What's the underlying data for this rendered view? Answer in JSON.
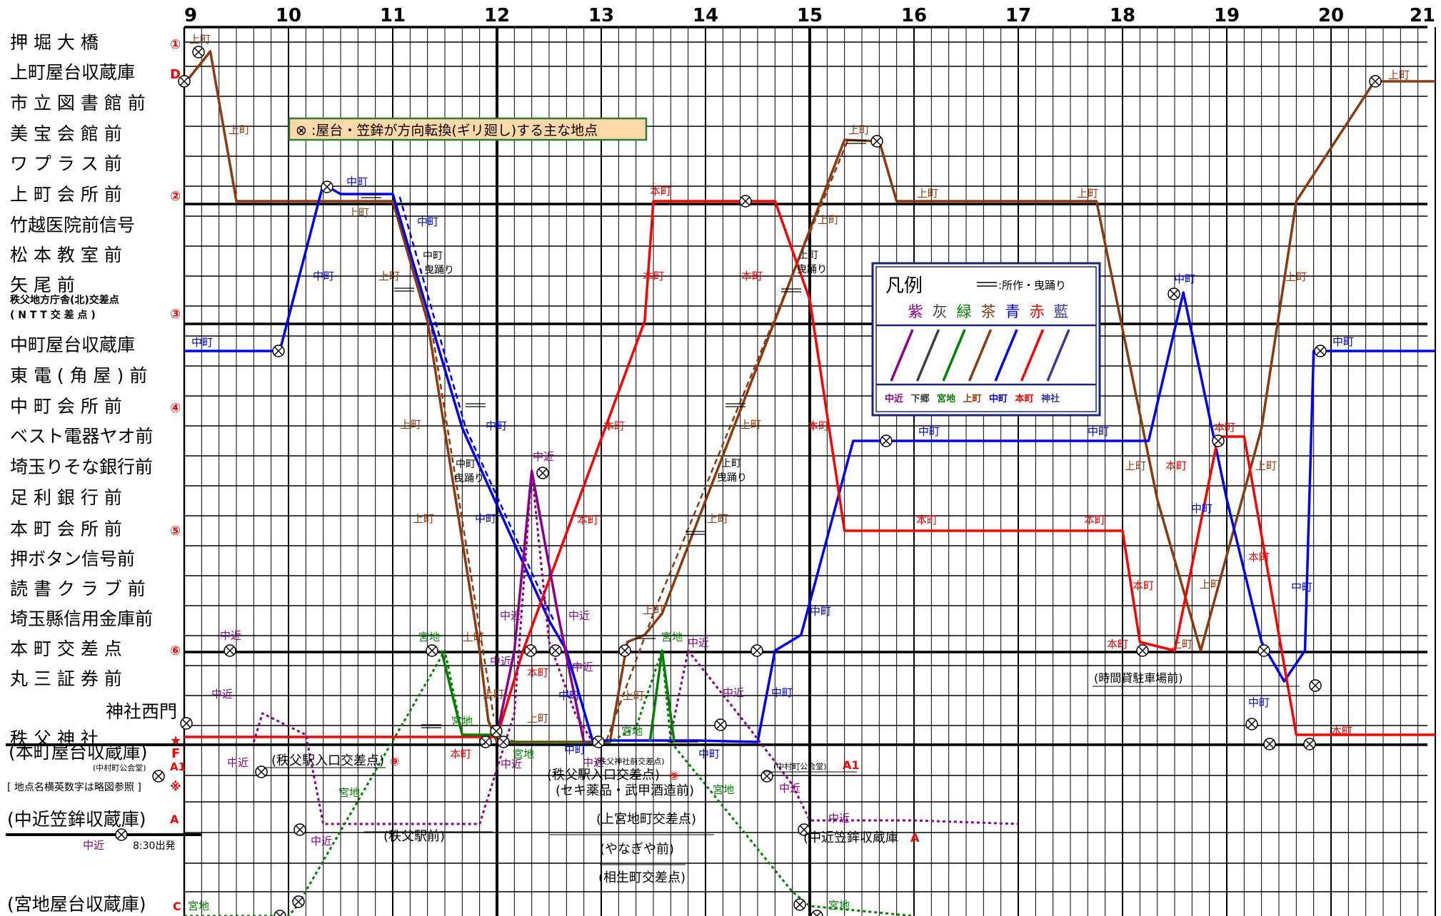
{
  "hours": [
    "9",
    "10",
    "11",
    "12",
    "13",
    "14",
    "15",
    "16",
    "17",
    "18",
    "19",
    "20",
    "21"
  ],
  "stations": [
    {
      "name": "押 堀 大 橋",
      "mark": "①",
      "size": 26
    },
    {
      "name": "上町屋台収蔵庫",
      "mark": "D",
      "size": 26
    },
    {
      "name": "市 立 図 書 館 前",
      "mark": "",
      "size": 26
    },
    {
      "name": "美 宝 会 館 前",
      "mark": "",
      "size": 26
    },
    {
      "name": "ワ プ ラ ス 前",
      "mark": "",
      "size": 26
    },
    {
      "name": "上 町 会 所 前",
      "mark": "②",
      "size": 26
    },
    {
      "name": "竹越医院前信号",
      "mark": "",
      "size": 26
    },
    {
      "name": "松 本 教 室 前",
      "mark": "",
      "size": 26
    },
    {
      "name": "矢 尾 前",
      "mark": "",
      "size": 26
    },
    {
      "name": "秩父地方庁舎(北)交差点",
      "name2": "( N T T 交 差 点 )",
      "mark": "③",
      "size": 14
    },
    {
      "name": "中町屋台収蔵庫",
      "mark": "",
      "size": 26
    },
    {
      "name": "東 電 ( 角 屋 ) 前",
      "mark": "",
      "size": 26
    },
    {
      "name": "中 町 会 所 前",
      "mark": "④",
      "size": 26
    },
    {
      "name": "ベスト電器ヤオ前",
      "mark": "",
      "size": 26
    },
    {
      "name": "埼玉りそな銀行前",
      "mark": "",
      "size": 26
    },
    {
      "name": "足 利 銀 行 前",
      "mark": "",
      "size": 26
    },
    {
      "name": "本 町 会 所 前",
      "mark": "⑤",
      "size": 26
    },
    {
      "name": "押ボタン信号前",
      "mark": "",
      "size": 26
    },
    {
      "name": "読 書 ク ラ ブ 前",
      "mark": "",
      "size": 26
    },
    {
      "name": "埼玉縣信用金庫前",
      "mark": "",
      "size": 26
    },
    {
      "name": "本 町 交 差 点",
      "mark": "⑥",
      "size": 26
    },
    {
      "name": "丸 三 証 券 前",
      "mark": "",
      "size": 26
    },
    {
      "name": "神社西門",
      "mark": "",
      "size": 26
    },
    {
      "name": "秩 父 神 社",
      "mark": "★",
      "size": 26
    },
    {
      "name": "(本町屋台収蔵庫)",
      "mark": "F",
      "size": 26
    }
  ],
  "lower_labels": [
    {
      "text": "(中村町公会堂)",
      "mark": "A1",
      "size": 13
    },
    {
      "text": "[ 地点名横英数字は略図参照 ]",
      "mark": "※",
      "size": 14
    },
    {
      "text": "(中近笠鉾収蔵庫)",
      "mark": "A",
      "size": 26
    },
    {
      "text": "(宮地屋台収蔵庫)",
      "mark": "C",
      "size": 26
    }
  ],
  "notice": "⊗ :屋台・笠鉾が方向転換(ギリ廻し)する主な地点",
  "legend": {
    "title": "凡例",
    "note": ":所作・曳踊り",
    "colors_jp": [
      "紫",
      "灰",
      "緑",
      "茶",
      "青",
      "赤",
      "藍"
    ],
    "groups": [
      "中近",
      "下郷",
      "宮地",
      "上町",
      "中町",
      "本町",
      "神社"
    ],
    "colors": [
      "#8B008B",
      "#404040",
      "#008000",
      "#8B3A0F",
      "#0000FF",
      "#FF0000",
      "#3A3A9A"
    ]
  },
  "start_note": "8:30出発",
  "place_notes": [
    "(秩父駅入口交差点)",
    "(秩父駅前)",
    "(秩父駅入口交差点)",
    "(セキ薬品・武甲酒造前)",
    "(上宮地町交差点)",
    "(やなぎや前)",
    "(相生町交差点)",
    "(時間貸駐車場前)",
    "(中村町公会堂)",
    "(中近笠鉾収蔵庫",
    "(秩父神社前交差点)"
  ],
  "place_marks": [
    "⑨",
    "⑨",
    "A",
    "A1"
  ],
  "route_labels": [
    "上町",
    "中町",
    "本町",
    "中近",
    "宮地",
    "中町曳踊り",
    "上町曳踊り"
  ]
}
